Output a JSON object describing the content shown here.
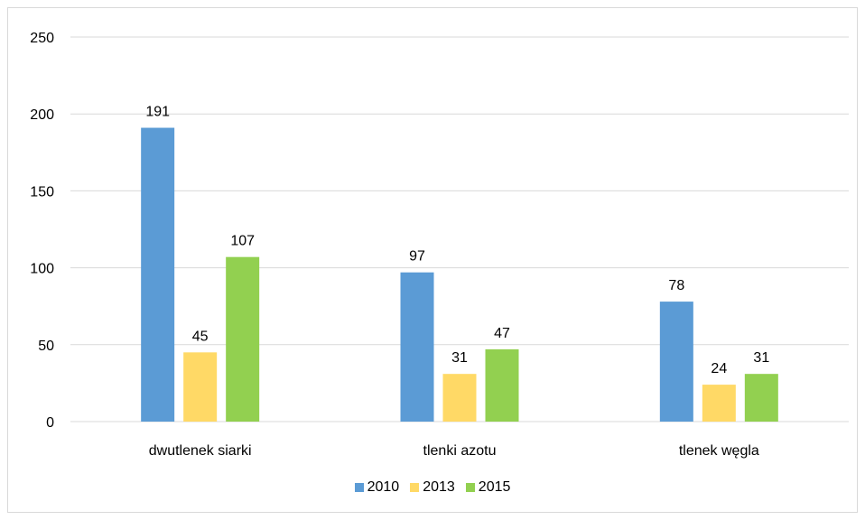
{
  "chart_data": {
    "type": "bar",
    "categories": [
      "dwutlenek siarki",
      "tlenki azotu",
      "tlenek węgla"
    ],
    "series": [
      {
        "name": "2010",
        "values": [
          191,
          97,
          78
        ],
        "color": "#5b9bd5"
      },
      {
        "name": "2013",
        "values": [
          45,
          31,
          24
        ],
        "color": "#ffd966"
      },
      {
        "name": "2015",
        "values": [
          107,
          47,
          31
        ],
        "color": "#92d050"
      }
    ],
    "yticks": [
      "0",
      "50",
      "100",
      "150",
      "200",
      "250"
    ],
    "ylim": [
      0,
      250
    ],
    "grid": true,
    "legend_position": "bottom",
    "data_labels": true
  }
}
